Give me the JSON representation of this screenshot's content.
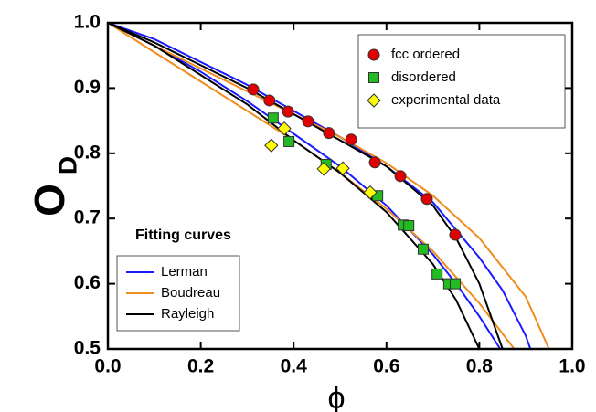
{
  "chart_data": {
    "type": "scatter",
    "x_label": "ϕ",
    "y_label": "O",
    "y_label_subscript": "D",
    "xlim": [
      0,
      1
    ],
    "ylim": [
      0.5,
      1
    ],
    "xticks": [
      {
        "value": 0,
        "label": "0.0"
      },
      0.2,
      0.4,
      0.6,
      0.8,
      {
        "value": 1,
        "label": "1.0"
      }
    ],
    "yticks": [
      0.5,
      0.6,
      0.7,
      0.8,
      0.9,
      {
        "value": 1,
        "label": "1.0"
      }
    ],
    "series": [
      {
        "name": "fcc ordered",
        "color": "#e00000",
        "marker": "circle",
        "x": [
          0.313,
          0.348,
          0.388,
          0.431,
          0.476,
          0.524,
          0.575,
          0.63,
          0.687,
          0.748
        ],
        "values": [
          0.898,
          0.881,
          0.864,
          0.849,
          0.831,
          0.821,
          0.786,
          0.765,
          0.73,
          0.675
        ]
      },
      {
        "name": "disordered",
        "color": "#22bb22",
        "marker": "square",
        "x": [
          0.356,
          0.39,
          0.47,
          0.581,
          0.636,
          0.648,
          0.679,
          0.709,
          0.734,
          0.748
        ],
        "values": [
          0.854,
          0.818,
          0.783,
          0.735,
          0.69,
          0.689,
          0.653,
          0.615,
          0.6,
          0.6
        ]
      },
      {
        "name": "experimental data",
        "color": "#ffff00",
        "marker": "diamond",
        "x": [
          0.352,
          0.38,
          0.465,
          0.506,
          0.565
        ],
        "values": [
          0.812,
          0.838,
          0.776,
          0.777,
          0.74
        ]
      }
    ],
    "fit_title": "Fitting curves",
    "fits": [
      {
        "name": "Lerman",
        "color": "#1a1aff",
        "branches": [
          {
            "x": [
              0,
              0.1,
              0.2,
              0.3,
              0.4,
              0.5,
              0.6,
              0.7,
              0.8,
              0.85,
              0.9,
              0.91
            ],
            "values": [
              1,
              0.975,
              0.94,
              0.905,
              0.865,
              0.825,
              0.78,
              0.725,
              0.64,
              0.59,
              0.52,
              0.5
            ]
          },
          {
            "x": [
              0,
              0.1,
              0.2,
              0.3,
              0.4,
              0.5,
              0.6,
              0.7,
              0.75,
              0.8,
              0.845
            ],
            "values": [
              1,
              0.965,
              0.925,
              0.88,
              0.83,
              0.78,
              0.72,
              0.645,
              0.6,
              0.55,
              0.5
            ]
          }
        ]
      },
      {
        "name": "Boudreau",
        "color": "#f08c1e",
        "branches": [
          {
            "x": [
              0,
              0.1,
              0.2,
              0.3,
              0.4,
              0.5,
              0.6,
              0.7,
              0.8,
              0.9,
              0.95
            ],
            "values": [
              1,
              0.965,
              0.93,
              0.895,
              0.86,
              0.825,
              0.785,
              0.735,
              0.67,
              0.58,
              0.5
            ]
          },
          {
            "x": [
              0,
              0.1,
              0.2,
              0.3,
              0.4,
              0.5,
              0.6,
              0.7,
              0.8,
              0.875
            ],
            "values": [
              1,
              0.955,
              0.91,
              0.865,
              0.82,
              0.77,
              0.715,
              0.65,
              0.57,
              0.5
            ]
          }
        ]
      },
      {
        "name": "Rayleigh",
        "color": "#000000",
        "branches": [
          {
            "x": [
              0,
              0.1,
              0.2,
              0.3,
              0.5,
              0.6,
              0.7,
              0.75,
              0.8,
              0.85
            ],
            "values": [
              1,
              0.97,
              0.935,
              0.9,
              0.82,
              0.78,
              0.72,
              0.67,
              0.6,
              0.5
            ]
          },
          {
            "x": [
              0,
              0.1,
              0.2,
              0.3,
              0.4,
              0.5,
              0.6,
              0.7,
              0.75,
              0.8
            ],
            "values": [
              1,
              0.965,
              0.92,
              0.875,
              0.82,
              0.77,
              0.71,
              0.63,
              0.575,
              0.5
            ]
          }
        ]
      }
    ]
  }
}
